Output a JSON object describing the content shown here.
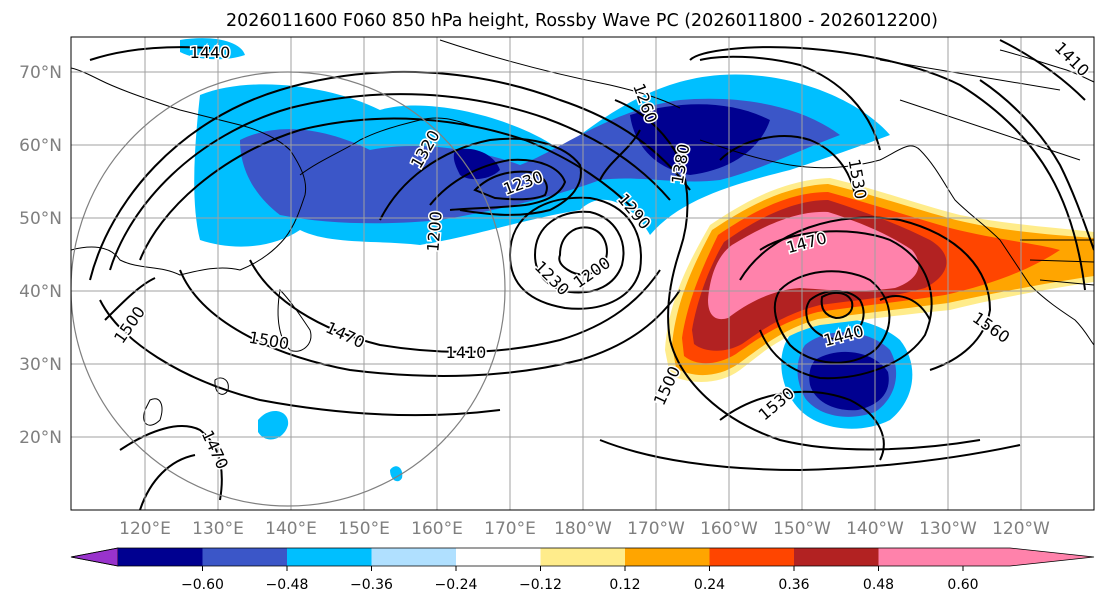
{
  "title": "2026011600 F060 850 hPa height, Rossby Wave PC (2026011800 - 2026012200)",
  "map": {
    "lat_labels": [
      "70°N",
      "60°N",
      "50°N",
      "40°N",
      "30°N",
      "20°N"
    ],
    "lon_labels": [
      "120°E",
      "130°E",
      "140°E",
      "150°E",
      "160°E",
      "170°E",
      "180°W",
      "170°W",
      "160°W",
      "150°W",
      "140°W",
      "130°W",
      "120°W"
    ],
    "contour_labels": [
      "1440",
      "1320",
      "1230",
      "1200",
      "1260",
      "1290",
      "1230",
      "1200",
      "1380",
      "1530",
      "1470",
      "1440",
      "1500",
      "1500",
      "1470",
      "1410",
      "1560",
      "1500",
      "1530",
      "1470",
      "1410"
    ]
  },
  "colorbar": {
    "ticks": [
      "−0.60",
      "−0.48",
      "−0.36",
      "−0.24",
      "−0.12",
      "0.12",
      "0.24",
      "0.36",
      "0.48",
      "0.60"
    ],
    "colors": [
      "#9933cc",
      "#000090",
      "#3b56c8",
      "#00bfff",
      "#b0e0ff",
      "#ffffff",
      "#ffec8b",
      "#ffa500",
      "#ff4500",
      "#b22222",
      "#ff82ab"
    ]
  }
}
